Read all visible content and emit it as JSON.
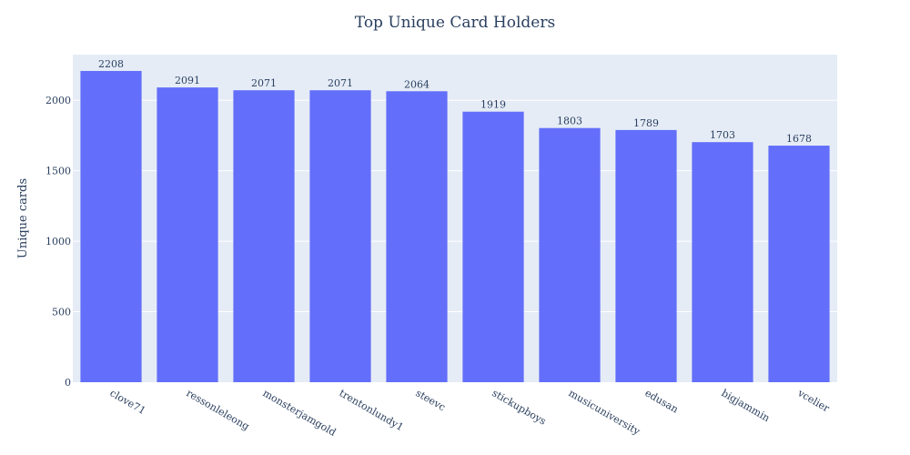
{
  "chart_data": {
    "type": "bar",
    "title": "Top Unique Card Holders",
    "xlabel": "",
    "ylabel": "Unique cards",
    "categories": [
      "clove71",
      "ressonleleong",
      "monsterjamgold",
      "trentonlundy1",
      "steevc",
      "stickupboys",
      "musicuniversity",
      "edusan",
      "bigjammin",
      "vcelier"
    ],
    "values": [
      2208,
      2091,
      2071,
      2071,
      2064,
      1919,
      1803,
      1789,
      1703,
      1678
    ],
    "value_labels": [
      "2208",
      "2091",
      "2071",
      "2071",
      "2064",
      "1919",
      "1803",
      "1789",
      "1703",
      "1678"
    ],
    "ylim": [
      0,
      2324
    ],
    "yticks": [
      0,
      500,
      1000,
      1500,
      2000
    ],
    "ytick_labels": [
      "0",
      "500",
      "1000",
      "1500",
      "2000"
    ],
    "grid": true,
    "colors": {
      "bar": "#636efa",
      "plot_bg": "#e5ecf6",
      "grid": "#ffffff",
      "text": "#2a3f5f"
    }
  }
}
